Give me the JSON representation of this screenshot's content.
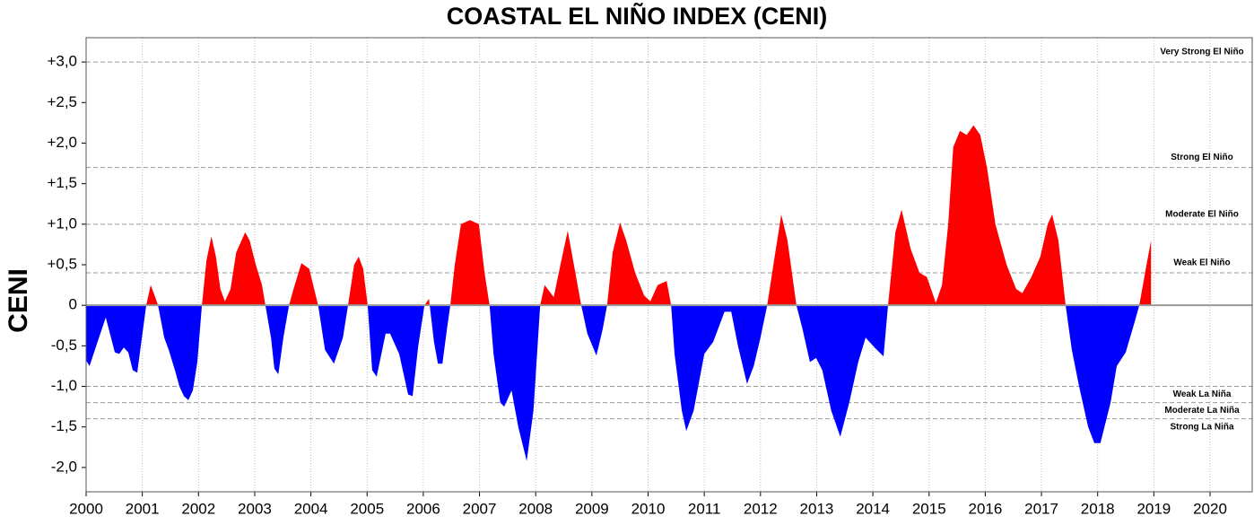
{
  "chart_data": {
    "type": "area",
    "title": "COASTAL EL NIÑO INDEX (CENI)",
    "ylabel": "CENI",
    "positive_color": "#ff0000",
    "negative_color": "#0000ff",
    "xlim": [
      2000,
      2020.75
    ],
    "ylim": [
      -2.3,
      3.3
    ],
    "xticks": [
      2000,
      2001,
      2002,
      2003,
      2004,
      2005,
      2006,
      2007,
      2008,
      2009,
      2010,
      2011,
      2012,
      2013,
      2014,
      2015,
      2016,
      2017,
      2018,
      2019,
      2020
    ],
    "yticks": [
      {
        "value": 3,
        "label": "+3,0"
      },
      {
        "value": 2.5,
        "label": "+2,5"
      },
      {
        "value": 2,
        "label": "+2,0"
      },
      {
        "value": 1.5,
        "label": "+1,5"
      },
      {
        "value": 1,
        "label": "+1,0"
      },
      {
        "value": 0.5,
        "label": "+0,5"
      },
      0,
      {
        "value": -0.5,
        "label": "-0,5"
      },
      {
        "value": -1,
        "label": "-1,0"
      },
      {
        "value": -1.5,
        "label": "-1,5"
      },
      {
        "value": -2,
        "label": "-2,0"
      }
    ],
    "grid": {
      "x": true
    },
    "thresholds": [
      {
        "value": 3,
        "label": "Very Strong El Niño"
      },
      {
        "value": 1.7,
        "label": "Strong El Niño"
      },
      {
        "value": 1,
        "label": "Moderate El Niño"
      },
      {
        "value": 0.4,
        "label": "Weak El Niño"
      },
      {
        "value": -1,
        "label": "Weak La Niña"
      },
      {
        "value": -1.2,
        "label": "Moderate La Niña"
      },
      {
        "value": -1.4,
        "label": "Strong La Niña"
      }
    ],
    "x": [
      2000.0,
      2000.06,
      2000.35,
      2000.51,
      2000.59,
      2000.67,
      2000.75,
      2000.83,
      2000.91,
      2001.07,
      2001.15,
      2001.23,
      2001.28,
      2001.39,
      2001.47,
      2001.58,
      2001.66,
      2001.74,
      2001.82,
      2001.9,
      2001.98,
      2002.06,
      2002.14,
      2002.23,
      2002.31,
      2002.39,
      2002.47,
      2002.57,
      2002.67,
      2002.83,
      2002.91,
      2003.02,
      2003.13,
      2003.19,
      2003.29,
      2003.35,
      2003.42,
      2003.51,
      2003.61,
      2003.69,
      2003.83,
      2003.97,
      2004.13,
      2004.25,
      2004.41,
      2004.57,
      2004.66,
      2004.77,
      2004.85,
      2004.93,
      2005.01,
      2005.09,
      2005.17,
      2005.33,
      2005.41,
      2005.57,
      2005.73,
      2005.81,
      2005.91,
      2006.02,
      2006.1,
      2006.19,
      2006.26,
      2006.34,
      2006.42,
      2006.48,
      2006.56,
      2006.67,
      2006.83,
      2006.99,
      2007.09,
      2007.18,
      2007.25,
      2007.37,
      2007.44,
      2007.57,
      2007.69,
      2007.84,
      2007.96,
      2008.08,
      2008.16,
      2008.32,
      2008.44,
      2008.57,
      2008.68,
      2008.81,
      2008.92,
      2009.08,
      2009.19,
      2009.27,
      2009.37,
      2009.5,
      2009.61,
      2009.77,
      2009.93,
      2010.04,
      2010.17,
      2010.33,
      2010.41,
      2010.47,
      2010.6,
      2010.68,
      2010.81,
      2011.0,
      2011.16,
      2011.36,
      2011.48,
      2011.6,
      2011.76,
      2011.88,
      2012.0,
      2012.12,
      2012.23,
      2012.37,
      2012.48,
      2012.64,
      2012.75,
      2012.88,
      2012.99,
      2013.1,
      2013.26,
      2013.42,
      2013.58,
      2013.74,
      2013.87,
      2014.03,
      2014.19,
      2014.27,
      2014.4,
      2014.51,
      2014.67,
      2014.83,
      2014.96,
      2015.12,
      2015.23,
      2015.34,
      2015.43,
      2015.55,
      2015.67,
      2015.79,
      2015.91,
      2016.03,
      2016.18,
      2016.38,
      2016.55,
      2016.66,
      2016.82,
      2016.98,
      2017.11,
      2017.19,
      2017.3,
      2017.43,
      2017.54,
      2017.67,
      2017.83,
      2017.94,
      2018.05,
      2018.23,
      2018.34,
      2018.5,
      2018.66,
      2018.74,
      2018.87,
      2018.95
    ],
    "values": [
      -0.68,
      -0.75,
      -0.15,
      -0.58,
      -0.6,
      -0.52,
      -0.58,
      -0.8,
      -0.83,
      0,
      0.25,
      0.1,
      0,
      -0.4,
      -0.55,
      -0.8,
      -1.0,
      -1.12,
      -1.17,
      -1.05,
      -0.7,
      0,
      0.55,
      0.85,
      0.6,
      0.2,
      0.05,
      0.2,
      0.65,
      0.9,
      0.8,
      0.5,
      0.25,
      0,
      -0.4,
      -0.78,
      -0.85,
      -0.4,
      0,
      0.2,
      0.52,
      0.45,
      0,
      -0.55,
      -0.72,
      -0.4,
      0,
      0.5,
      0.6,
      0.45,
      0,
      -0.8,
      -0.88,
      -0.35,
      -0.35,
      -0.6,
      -1.1,
      -1.12,
      -0.5,
      0,
      0.08,
      -0.45,
      -0.72,
      -0.72,
      -0.3,
      0,
      0.5,
      1.0,
      1.05,
      1.0,
      0.4,
      0,
      -0.6,
      -1.2,
      -1.25,
      -1.05,
      -1.5,
      -1.92,
      -1.3,
      0,
      0.25,
      0.1,
      0.5,
      0.92,
      0.5,
      0,
      -0.35,
      -0.62,
      -0.3,
      0,
      0.65,
      1.02,
      0.8,
      0.4,
      0.12,
      0.05,
      0.25,
      0.3,
      0,
      -0.6,
      -1.3,
      -1.55,
      -1.3,
      -0.6,
      -0.45,
      -0.08,
      -0.08,
      -0.5,
      -0.97,
      -0.75,
      -0.4,
      0,
      0.5,
      1.12,
      0.8,
      0,
      -0.3,
      -0.7,
      -0.65,
      -0.8,
      -1.3,
      -1.62,
      -1.2,
      -0.7,
      -0.4,
      -0.52,
      -0.63,
      0,
      0.9,
      1.18,
      0.7,
      0.4,
      0.35,
      0.03,
      0.25,
      1.0,
      1.95,
      2.15,
      2.1,
      2.22,
      2.1,
      1.7,
      1.0,
      0.5,
      0.2,
      0.15,
      0.35,
      0.6,
      1.0,
      1.12,
      0.8,
      0,
      -0.55,
      -1.0,
      -1.5,
      -1.7,
      -1.7,
      -1.2,
      -0.75,
      -0.58,
      -0.2,
      0,
      0.5,
      0.8
    ]
  }
}
